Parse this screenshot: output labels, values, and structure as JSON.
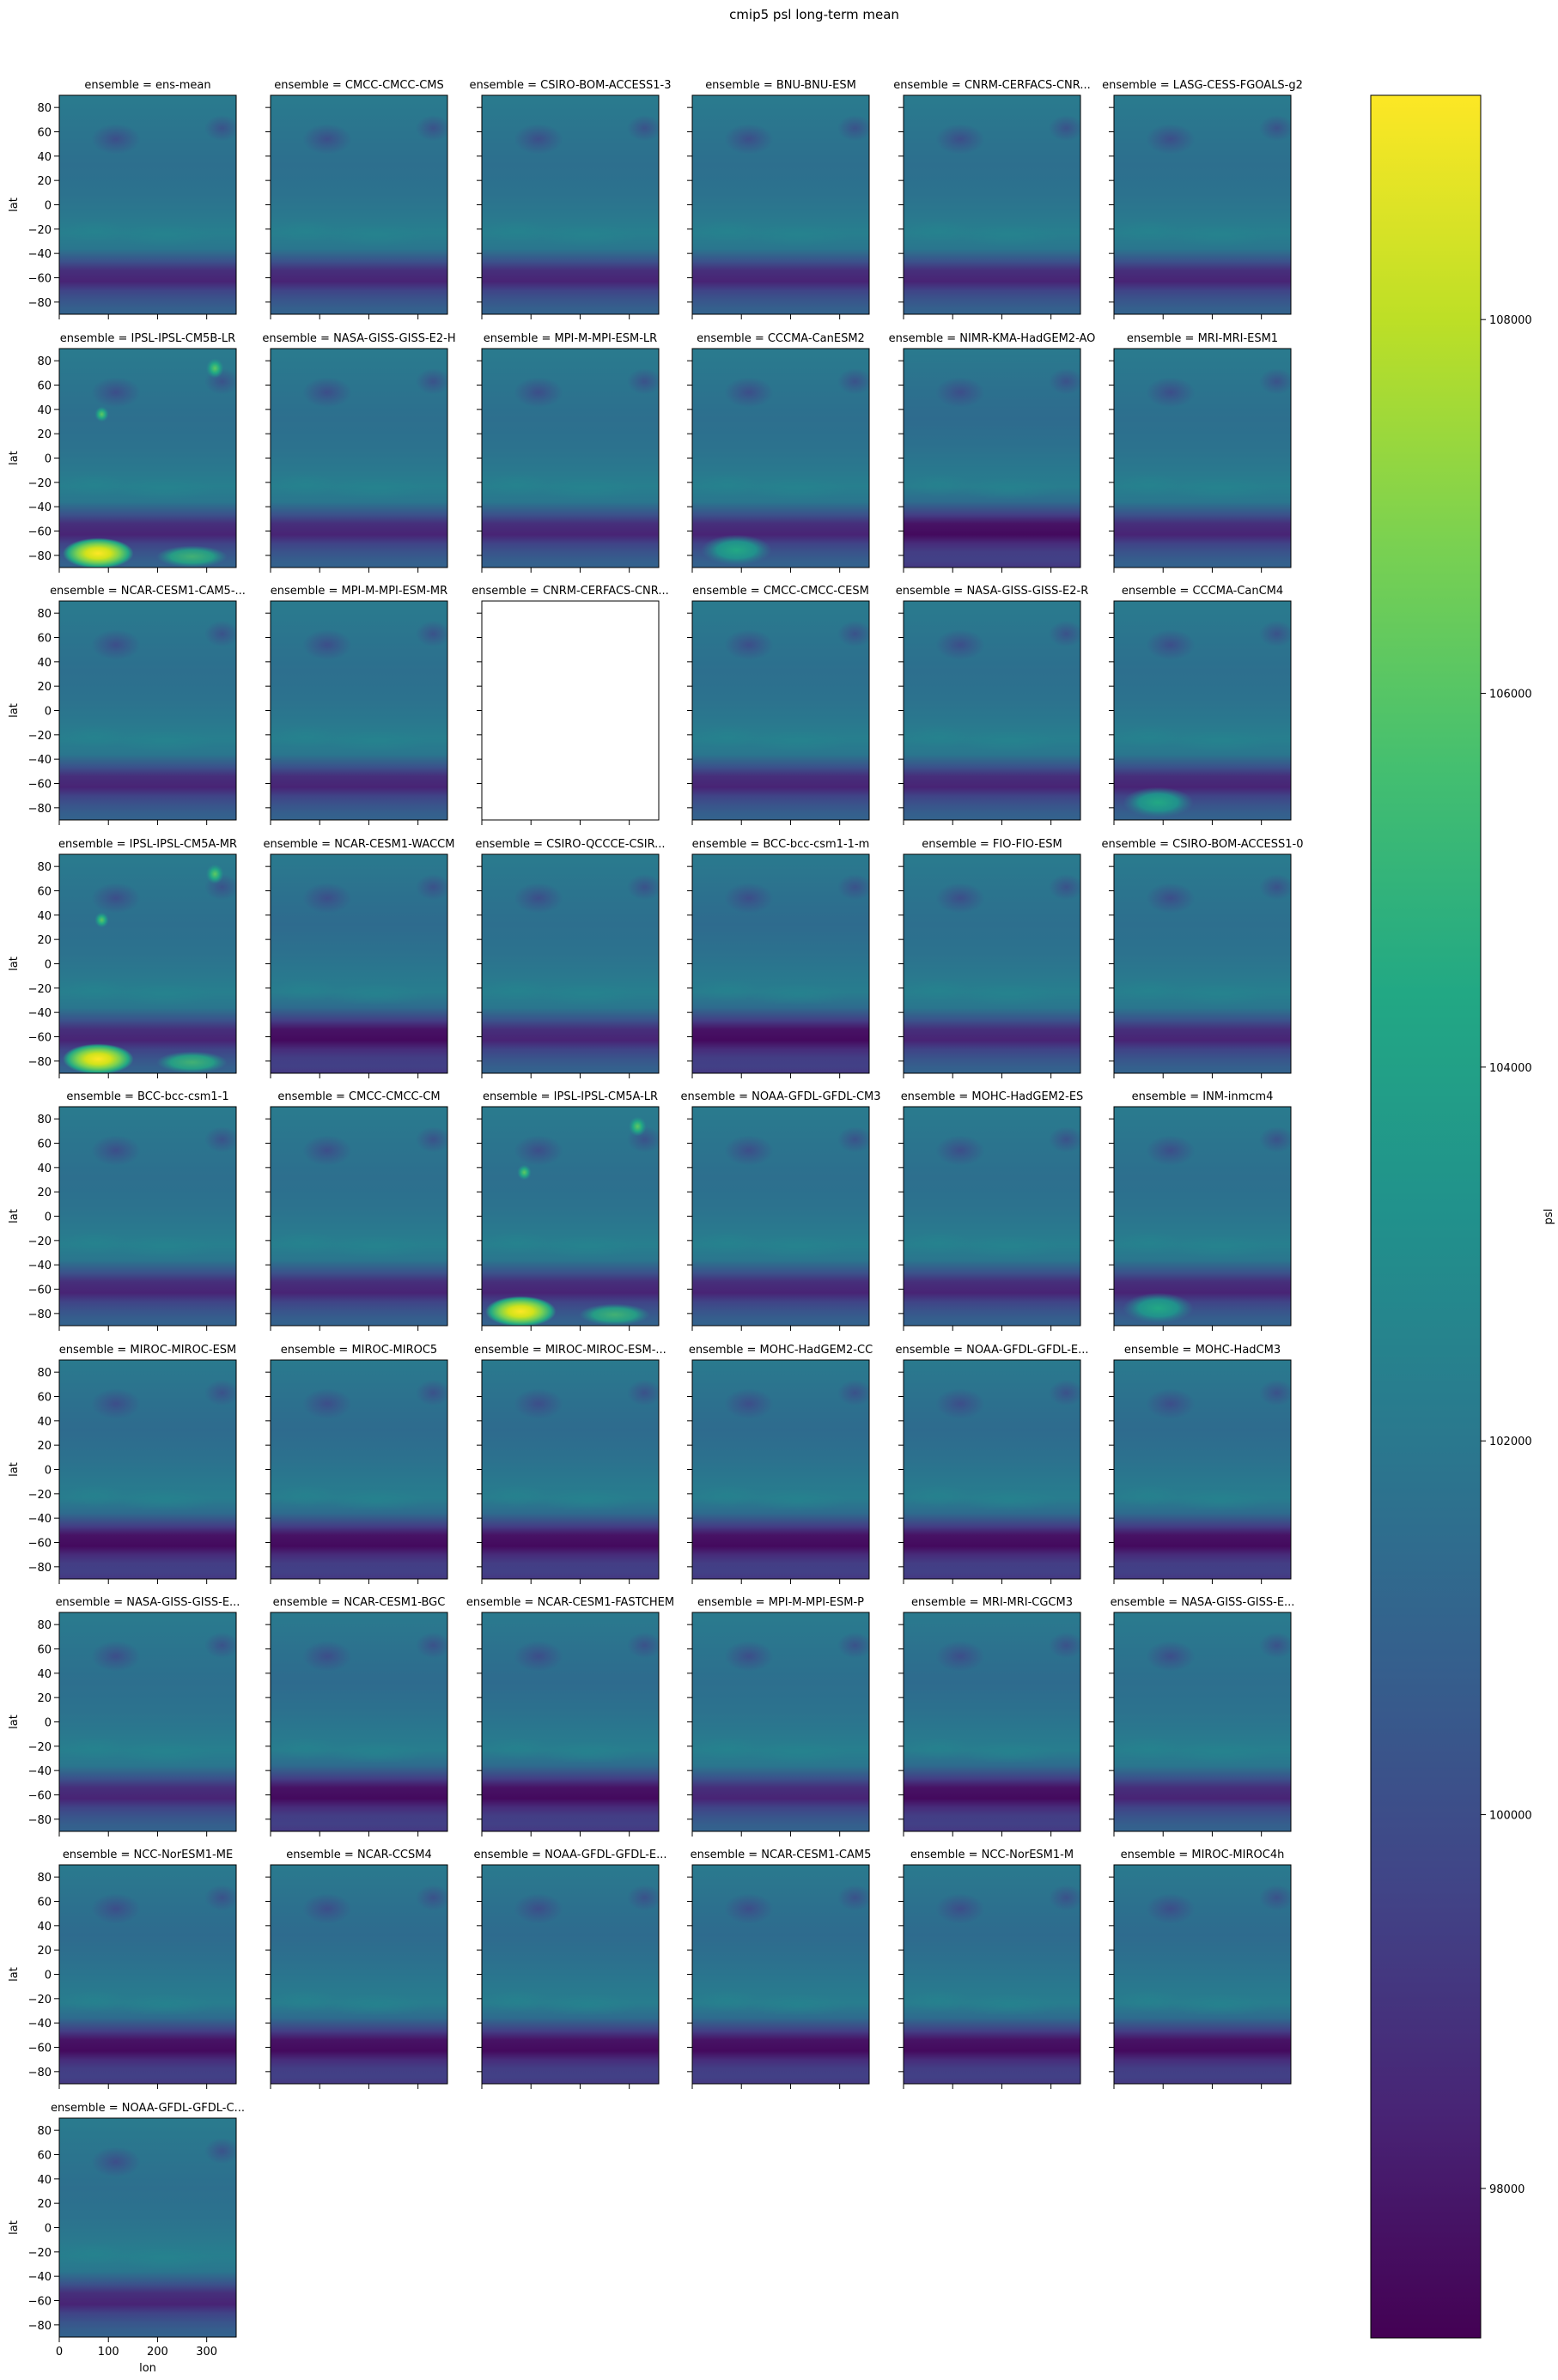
{
  "chart_data": {
    "type": "heatmap",
    "title": "cmip5 psl long-term mean",
    "xlabel": "lon",
    "ylabel": "lat",
    "colorbar_label": "psl",
    "colormap": "viridis",
    "facet_prefix": "ensemble = ",
    "xlim": [
      0,
      360
    ],
    "ylim": [
      -90,
      90
    ],
    "x_ticks": [
      0,
      100,
      200,
      300
    ],
    "y_ticks": [
      80,
      60,
      40,
      20,
      0,
      -20,
      -40,
      -60,
      -80
    ],
    "colorbar_range": [
      97200,
      109200
    ],
    "colorbar_ticks": [
      98000,
      100000,
      102000,
      104000,
      106000,
      108000
    ],
    "facets": [
      {
        "label": "ens-mean",
        "variant": "normal"
      },
      {
        "label": "CMCC-CMCC-CMS",
        "variant": "normal"
      },
      {
        "label": "CSIRO-BOM-ACCESS1-3",
        "variant": "normal"
      },
      {
        "label": "BNU-BNU-ESM",
        "variant": "normal"
      },
      {
        "label": "CNRM-CERFACS-CNR...",
        "variant": "normal"
      },
      {
        "label": "LASG-CESS-FGOALS-g2",
        "variant": "normal"
      },
      {
        "label": "IPSL-IPSL-CM5B-LR",
        "variant": "ipsl"
      },
      {
        "label": "NASA-GISS-GISS-E2-H",
        "variant": "normal"
      },
      {
        "label": "MPI-M-MPI-ESM-LR",
        "variant": "normal"
      },
      {
        "label": "CCCMA-CanESM2",
        "variant": "canesm"
      },
      {
        "label": "NIMR-KMA-HadGEM2-AO",
        "variant": "deep"
      },
      {
        "label": "MRI-MRI-ESM1",
        "variant": "normal"
      },
      {
        "label": "NCAR-CESM1-CAM5-...",
        "variant": "normal"
      },
      {
        "label": "MPI-M-MPI-ESM-MR",
        "variant": "normal"
      },
      {
        "label": "CNRM-CERFACS-CNR...",
        "variant": "empty"
      },
      {
        "label": "CMCC-CMCC-CESM",
        "variant": "normal"
      },
      {
        "label": "NASA-GISS-GISS-E2-R",
        "variant": "normal"
      },
      {
        "label": "CCCMA-CanCM4",
        "variant": "canesm"
      },
      {
        "label": "IPSL-IPSL-CM5A-MR",
        "variant": "ipsl"
      },
      {
        "label": "NCAR-CESM1-WACCM",
        "variant": "deep"
      },
      {
        "label": "CSIRO-QCCCE-CSIR...",
        "variant": "normal"
      },
      {
        "label": "BCC-bcc-csm1-1-m",
        "variant": "deep"
      },
      {
        "label": "FIO-FIO-ESM",
        "variant": "normal"
      },
      {
        "label": "CSIRO-BOM-ACCESS1-0",
        "variant": "normal"
      },
      {
        "label": "BCC-bcc-csm1-1",
        "variant": "normal"
      },
      {
        "label": "CMCC-CMCC-CM",
        "variant": "normal"
      },
      {
        "label": "IPSL-IPSL-CM5A-LR",
        "variant": "ipsl"
      },
      {
        "label": "NOAA-GFDL-GFDL-CM3",
        "variant": "normal"
      },
      {
        "label": "MOHC-HadGEM2-ES",
        "variant": "normal"
      },
      {
        "label": "INM-inmcm4",
        "variant": "canesm"
      },
      {
        "label": "MIROC-MIROC-ESM",
        "variant": "deep"
      },
      {
        "label": "MIROC-MIROC5",
        "variant": "deep"
      },
      {
        "label": "MIROC-MIROC-ESM-...",
        "variant": "deep"
      },
      {
        "label": "MOHC-HadGEM2-CC",
        "variant": "deep"
      },
      {
        "label": "NOAA-GFDL-GFDL-E...",
        "variant": "deep"
      },
      {
        "label": "MOHC-HadCM3",
        "variant": "deep"
      },
      {
        "label": "NASA-GISS-GISS-E...",
        "variant": "normal"
      },
      {
        "label": "NCAR-CESM1-BGC",
        "variant": "deep"
      },
      {
        "label": "NCAR-CESM1-FASTCHEM",
        "variant": "deep"
      },
      {
        "label": "MPI-M-MPI-ESM-P",
        "variant": "normal"
      },
      {
        "label": "MRI-MRI-CGCM3",
        "variant": "deep"
      },
      {
        "label": "NASA-GISS-GISS-E...",
        "variant": "normal"
      },
      {
        "label": "NCC-NorESM1-ME",
        "variant": "deep"
      },
      {
        "label": "NCAR-CCSM4",
        "variant": "deep"
      },
      {
        "label": "NOAA-GFDL-GFDL-E...",
        "variant": "deep"
      },
      {
        "label": "NCAR-CESM1-CAM5",
        "variant": "deep"
      },
      {
        "label": "NCC-NorESM1-M",
        "variant": "deep"
      },
      {
        "label": "MIROC-MIROC4h",
        "variant": "deep"
      },
      {
        "label": "NOAA-GFDL-GFDL-C...",
        "variant": "normal"
      }
    ]
  }
}
